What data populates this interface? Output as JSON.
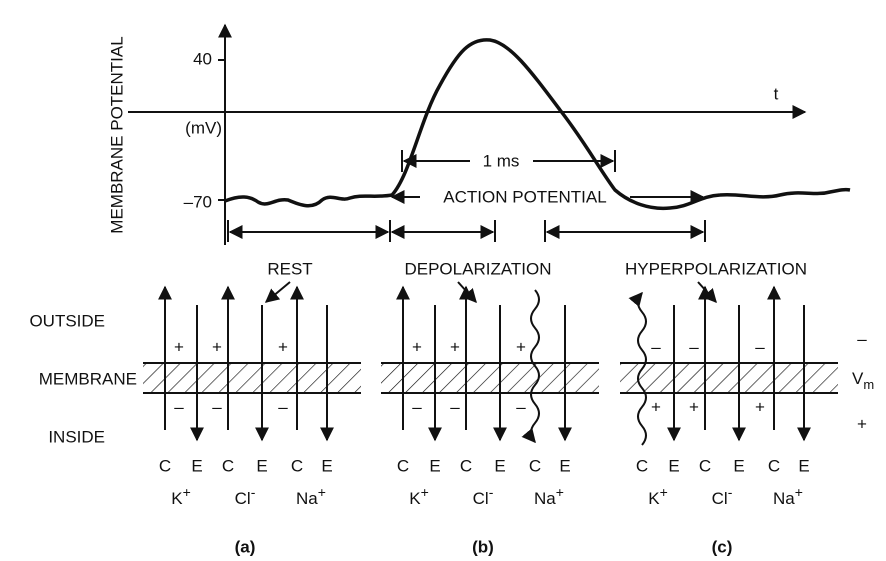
{
  "y_axis_label": "MEMBRANE POTENTIAL",
  "tick_labels": [
    "40",
    "(mV)",
    "–70"
  ],
  "t_label": "t",
  "duration_label": "1 ms",
  "action_potential_label": "ACTION POTENTIAL",
  "phases": [
    "REST",
    "DEPOLARIZATION",
    "HYPERPOLARIZATION"
  ],
  "side_labels": [
    "OUTSIDE",
    "MEMBRANE",
    "INSIDE"
  ],
  "vm": {
    "outside_sign": "–",
    "main": "V",
    "sub": "m",
    "inside_sign": "+"
  },
  "panels": [
    {
      "label": "(a)",
      "outside_signs": [
        "+",
        "+",
        "+"
      ],
      "inside_signs": [
        "–",
        "–",
        "–"
      ],
      "letters": [
        "C",
        "E",
        "C",
        "E",
        "C",
        "E"
      ],
      "ions": [
        {
          "symbol": "K",
          "charge": "+"
        },
        {
          "symbol": "Cl",
          "charge": "-"
        },
        {
          "symbol": "Na",
          "charge": "+"
        }
      ]
    },
    {
      "label": "(b)",
      "outside_signs": [
        "+",
        "+",
        "+"
      ],
      "inside_signs": [
        "–",
        "–",
        "–"
      ],
      "letters": [
        "C",
        "E",
        "C",
        "E",
        "C",
        "E"
      ],
      "ions": [
        {
          "symbol": "K",
          "charge": "+"
        },
        {
          "symbol": "Cl",
          "charge": "-"
        },
        {
          "symbol": "Na",
          "charge": "+"
        }
      ]
    },
    {
      "label": "(c)",
      "outside_signs": [
        "–",
        "–",
        "–"
      ],
      "inside_signs": [
        "+",
        "+",
        "+"
      ],
      "letters": [
        "C",
        "E",
        "C",
        "E",
        "C",
        "E"
      ],
      "ions": [
        {
          "symbol": "K",
          "charge": "+"
        },
        {
          "symbol": "Cl",
          "charge": "-"
        },
        {
          "symbol": "Na",
          "charge": "+"
        }
      ]
    }
  ]
}
